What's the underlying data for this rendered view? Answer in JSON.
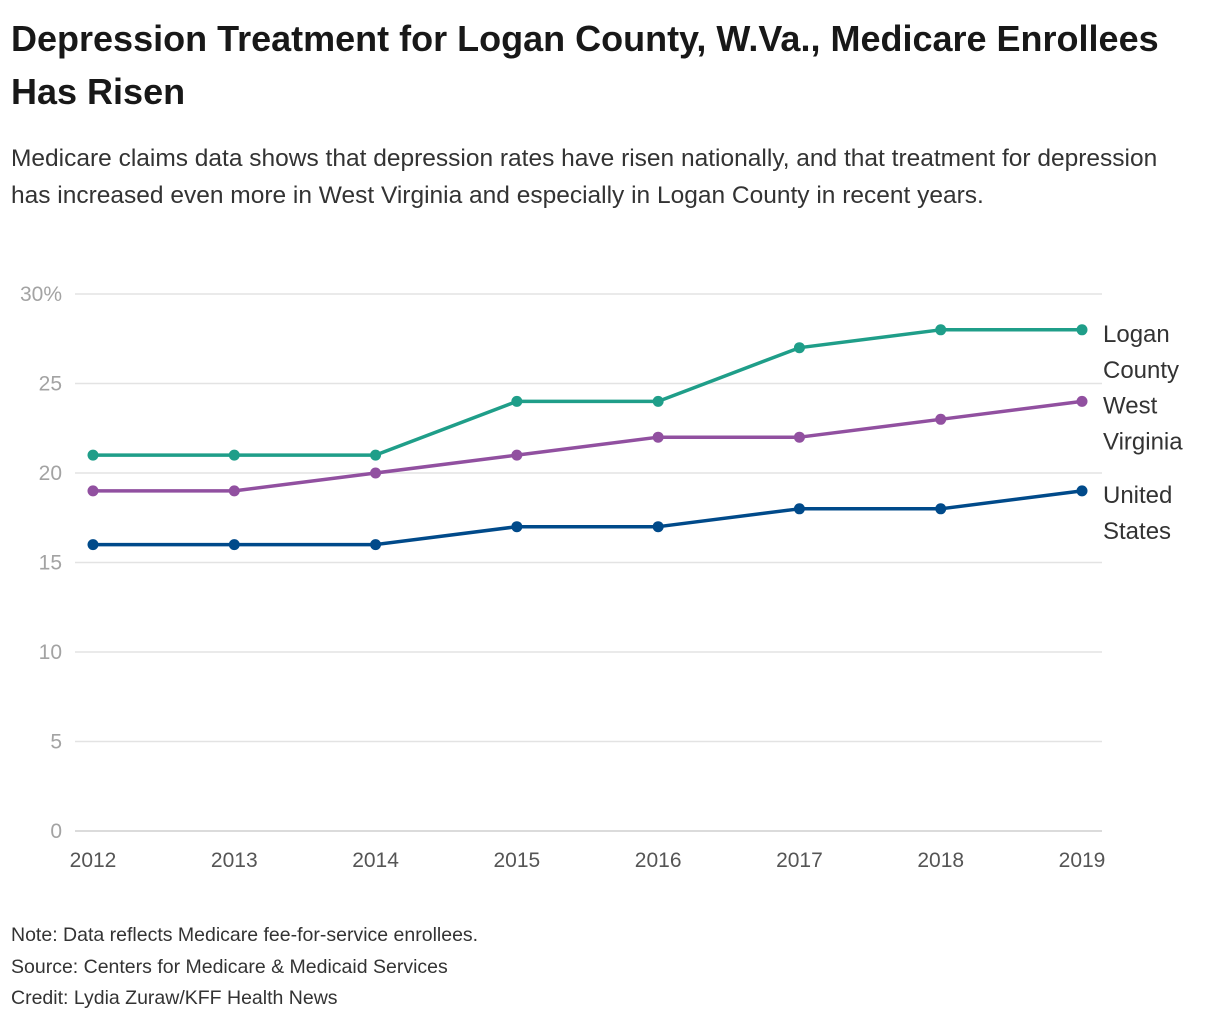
{
  "header": {
    "title": "Depression Treatment for Logan County, W.Va., Medicare Enrollees Has Risen",
    "subtitle": "Medicare claims data shows that depression rates have risen nationally, and that treatment for depression has increased even more in West Virginia and especially in Logan County in recent years."
  },
  "chart_data": {
    "type": "line",
    "title": "Depression Treatment for Logan County, W.Va., Medicare Enrollees Has Risen",
    "xlabel": "",
    "ylabel": "",
    "x": [
      "2012",
      "2013",
      "2014",
      "2015",
      "2016",
      "2017",
      "2018",
      "2019"
    ],
    "ylim": [
      0,
      30
    ],
    "yticks": [
      0,
      5,
      10,
      15,
      20,
      25,
      30
    ],
    "ytick_labels": [
      "0",
      "5",
      "10",
      "15",
      "20",
      "25",
      "30%"
    ],
    "grid": true,
    "legend": "direct labels at right",
    "series": [
      {
        "name": "Logan County",
        "label_lines": [
          "Logan",
          "County"
        ],
        "color": "#1f9e89",
        "values": [
          21,
          21,
          21,
          24,
          24,
          27,
          28,
          28
        ]
      },
      {
        "name": "West Virginia",
        "label_lines": [
          "West",
          "Virginia"
        ],
        "color": "#9150a0",
        "values": [
          19,
          19,
          20,
          21,
          22,
          22,
          23,
          24
        ]
      },
      {
        "name": "United States",
        "label_lines": [
          "United",
          "States"
        ],
        "color": "#004a8a",
        "values": [
          16,
          16,
          16,
          17,
          17,
          18,
          18,
          19
        ]
      }
    ]
  },
  "footer": {
    "note": "Note: Data reflects Medicare fee-for-service enrollees.",
    "source": "Source: Centers for Medicare & Medicaid Services",
    "credit": "Credit: Lydia Zuraw/KFF Health News"
  }
}
